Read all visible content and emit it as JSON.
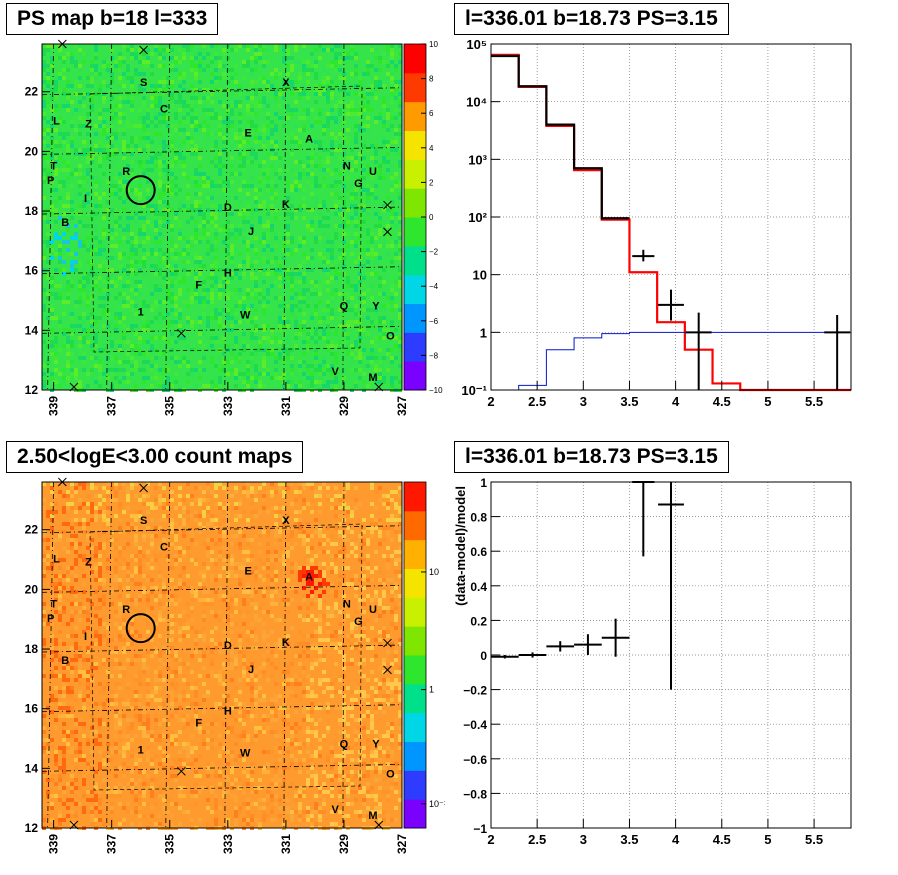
{
  "panels": {
    "ps_map": {
      "title": "PS map b=18 l=333",
      "x_ticks": [
        "339",
        "337",
        "335",
        "333",
        "331",
        "329",
        "327"
      ],
      "y_ticks": [
        "12",
        "14",
        "16",
        "18",
        "20",
        "22"
      ],
      "colorbar": {
        "ticks": [
          "10",
          "8",
          "6",
          "4",
          "2",
          "0",
          "−2",
          "−4",
          "−6",
          "−8",
          "−10"
        ],
        "stops": [
          "#7a00ff",
          "#2d3cff",
          "#0096ff",
          "#00d6e6",
          "#00e08a",
          "#2ee62e",
          "#7ee600",
          "#c8f000",
          "#f5e400",
          "#ff9a00",
          "#ff3a00",
          "#ff0000"
        ]
      },
      "background": "#35e34a"
    },
    "count_map": {
      "title": "2.50<logE<3.00 count maps",
      "x_ticks": [
        "339",
        "337",
        "335",
        "333",
        "331",
        "329",
        "327"
      ],
      "y_ticks": [
        "12",
        "14",
        "16",
        "18",
        "20",
        "22"
      ],
      "colorbar": {
        "ticks": [
          "10",
          "1",
          "10⁻¹"
        ],
        "stops": [
          "#7a00ff",
          "#2d3cff",
          "#0096ff",
          "#00d6e6",
          "#00e08a",
          "#2ee62e",
          "#7ee600",
          "#c8f000",
          "#f5e400",
          "#ffb000",
          "#ff6a00",
          "#ff1800"
        ]
      },
      "background": "#ff9a2e"
    },
    "spectrum": {
      "title": "l=336.01 b=18.73 PS=3.15"
    },
    "residual": {
      "title": "l=336.01 b=18.73 PS=3.15"
    }
  },
  "sources": [
    {
      "label": "S",
      "l": 335.9,
      "b": 22.2
    },
    {
      "label": "X",
      "l": 331.0,
      "b": 22.2
    },
    {
      "label": "C",
      "l": 335.2,
      "b": 21.3
    },
    {
      "label": "L",
      "l": 338.9,
      "b": 20.9
    },
    {
      "label": "Z",
      "l": 337.8,
      "b": 20.8
    },
    {
      "label": "E",
      "l": 332.3,
      "b": 20.5
    },
    {
      "label": "A",
      "l": 330.2,
      "b": 20.3
    },
    {
      "label": "N",
      "l": 328.9,
      "b": 19.4
    },
    {
      "label": "U",
      "l": 328.0,
      "b": 19.2
    },
    {
      "label": "G",
      "l": 328.5,
      "b": 18.8
    },
    {
      "label": "T",
      "l": 339.0,
      "b": 19.4
    },
    {
      "label": "R",
      "l": 336.5,
      "b": 19.2
    },
    {
      "label": "P",
      "l": 339.1,
      "b": 18.9
    },
    {
      "label": "I",
      "l": 337.9,
      "b": 18.3
    },
    {
      "label": "D",
      "l": 333.0,
      "b": 18.0
    },
    {
      "label": "K",
      "l": 331.0,
      "b": 18.1
    },
    {
      "label": "B",
      "l": 338.6,
      "b": 17.5
    },
    {
      "label": "J",
      "l": 332.2,
      "b": 17.2
    },
    {
      "label": "H",
      "l": 333.0,
      "b": 15.8
    },
    {
      "label": "F",
      "l": 334.0,
      "b": 15.4
    },
    {
      "label": "Q",
      "l": 329.0,
      "b": 14.7
    },
    {
      "label": "Y",
      "l": 327.9,
      "b": 14.7
    },
    {
      "label": "1",
      "l": 336.0,
      "b": 14.5
    },
    {
      "label": "W",
      "l": 332.4,
      "b": 14.4
    },
    {
      "label": "O",
      "l": 327.4,
      "b": 13.7
    },
    {
      "label": "V",
      "l": 329.3,
      "b": 12.5
    },
    {
      "label": "M",
      "l": 328.0,
      "b": 12.3
    }
  ],
  "crosses": [
    {
      "l": 338.7,
      "b": 23.6
    },
    {
      "l": 335.9,
      "b": 23.4
    },
    {
      "l": 334.6,
      "b": 13.9
    },
    {
      "l": 327.5,
      "b": 18.2
    },
    {
      "l": 327.5,
      "b": 17.3
    },
    {
      "l": 327.8,
      "b": 12.1
    },
    {
      "l": 338.3,
      "b": 12.1
    }
  ],
  "circle": {
    "l": 336.0,
    "b": 18.7
  },
  "chart_data": [
    {
      "type": "heatmap",
      "title": "PS map b=18 l=333",
      "x_range": [
        339.4,
        327.0
      ],
      "y_range": [
        12,
        23.6
      ],
      "z_range": [
        -10,
        10
      ],
      "xticks": [
        339,
        337,
        335,
        333,
        331,
        329,
        327
      ],
      "yticks": [
        12,
        14,
        16,
        18,
        20,
        22
      ],
      "grid": true
    },
    {
      "type": "line",
      "title": "l=336.01 b=18.73 PS=3.15",
      "x_range": [
        2,
        5.9
      ],
      "y_range": [
        0.1,
        100000
      ],
      "y_scale": "log",
      "grid": true,
      "xticks": [
        2,
        2.5,
        3,
        3.5,
        4,
        4.5,
        5,
        5.5
      ],
      "xtick_labels": [
        "2",
        "2.5",
        "3",
        "3.5",
        "4",
        "4.5",
        "5",
        "5.5"
      ],
      "yticks": [
        0.1,
        1,
        10,
        100,
        1000,
        10000,
        100000
      ],
      "ytick_labels": [
        "10⁻¹",
        "1",
        "10",
        "10²",
        "10³",
        "10⁴",
        "10⁵"
      ],
      "series": [
        {
          "color": "#ff0000",
          "style": "step",
          "edges": [
            2.0,
            2.3,
            2.6,
            2.9,
            3.2,
            3.5,
            3.8,
            4.1,
            4.4,
            4.7,
            5.0,
            5.3,
            5.6,
            5.9
          ],
          "values": [
            65000,
            18000,
            3800,
            650,
            90,
            11,
            1.5,
            0.5,
            0.13,
            0.1,
            0.1,
            0.1,
            0.1
          ]
        },
        {
          "color": "#000000",
          "style": "step",
          "edges": [
            2.0,
            2.3,
            2.6,
            2.9,
            3.2,
            3.5
          ],
          "values": [
            62000,
            18500,
            4000,
            700,
            95
          ]
        },
        {
          "color": "#0018c8",
          "style": "step",
          "edges": [
            2.0,
            2.3,
            2.6,
            2.9,
            3.2,
            3.5,
            5.9
          ],
          "values": [
            0.1,
            0.12,
            0.5,
            0.8,
            0.95,
            1.0
          ]
        },
        {
          "color": "#000000",
          "style": "errorbars",
          "points": [
            {
              "x": 3.65,
              "y": 21,
              "xerr": 0.12,
              "ylo": 17,
              "yhi": 27
            },
            {
              "x": 3.95,
              "y": 3,
              "xerr": 0.14,
              "ylo": 1.6,
              "yhi": 5.5
            },
            {
              "x": 4.25,
              "y": 1.0,
              "xerr": 0.14,
              "ylo": 0.1,
              "yhi": 2.2
            },
            {
              "x": 5.75,
              "y": 1.0,
              "xerr": 0.14,
              "ylo": 0.1,
              "yhi": 2.0
            }
          ]
        }
      ]
    },
    {
      "type": "heatmap",
      "title": "2.50<logE<3.00 count maps",
      "x_range": [
        339.4,
        327.0
      ],
      "y_range": [
        12,
        23.6
      ],
      "z_scale": "log",
      "colorbar_ticks": [
        "10",
        "1",
        "10⁻¹"
      ],
      "xticks": [
        339,
        337,
        335,
        333,
        331,
        329,
        327
      ],
      "yticks": [
        12,
        14,
        16,
        18,
        20,
        22
      ],
      "grid": true
    },
    {
      "type": "scatter",
      "title": "l=336.01 b=18.73 PS=3.15",
      "ylabel": "(data-model)/model",
      "x_range": [
        2,
        5.9
      ],
      "y_range": [
        -1,
        1
      ],
      "grid": true,
      "xticks": [
        2,
        2.5,
        3,
        3.5,
        4,
        4.5,
        5,
        5.5
      ],
      "xtick_labels": [
        "2",
        "2.5",
        "3",
        "3.5",
        "4",
        "4.5",
        "5",
        "5.5"
      ],
      "yticks": [
        -1,
        -0.8,
        -0.6,
        -0.4,
        -0.2,
        0,
        0.2,
        0.4,
        0.6,
        0.8,
        1
      ],
      "ytick_labels": [
        "−1",
        "−0.8",
        "−0.6",
        "−0.4",
        "−0.2",
        "0",
        "0.2",
        "0.4",
        "0.6",
        "0.8",
        "1"
      ],
      "points": [
        {
          "x": 2.15,
          "y": -0.01,
          "xerr": 0.15,
          "ylo": -0.02,
          "yhi": 0.0
        },
        {
          "x": 2.45,
          "y": 0.0,
          "xerr": 0.15,
          "ylo": -0.015,
          "yhi": 0.015
        },
        {
          "x": 2.75,
          "y": 0.05,
          "xerr": 0.15,
          "ylo": 0.02,
          "yhi": 0.08
        },
        {
          "x": 3.05,
          "y": 0.06,
          "xerr": 0.15,
          "ylo": 0.0,
          "yhi": 0.12
        },
        {
          "x": 3.35,
          "y": 0.1,
          "xerr": 0.15,
          "ylo": -0.01,
          "yhi": 0.21
        },
        {
          "x": 3.65,
          "y": 1.0,
          "xerr": 0.12,
          "ylo": 0.57,
          "yhi": 1.0
        },
        {
          "x": 3.95,
          "y": 0.87,
          "xerr": 0.14,
          "ylo": -0.2,
          "yhi": 1.0
        }
      ]
    }
  ]
}
